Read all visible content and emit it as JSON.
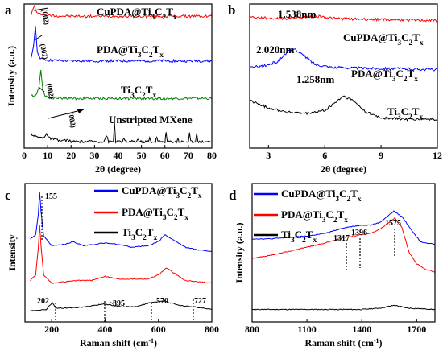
{
  "chart_data": [
    {
      "panel": "a",
      "type": "line",
      "xlabel": "2θ (degree)",
      "ylabel": "Intensity (a.u.)",
      "xlim": [
        0,
        80
      ],
      "xticks": [
        "0",
        "10",
        "20",
        "30",
        "40",
        "50",
        "60",
        "70",
        "80"
      ],
      "grid": false,
      "series": [
        {
          "name": "CuPDA@Ti3C2Tx",
          "color": "#ff0000",
          "peak_label": "(002)",
          "points": [
            [
              3,
              0.93
            ],
            [
              4,
              0.97
            ],
            [
              4.5,
              0.99
            ],
            [
              5,
              0.95
            ],
            [
              6,
              0.93
            ],
            [
              8,
              0.93
            ],
            [
              10,
              0.92
            ],
            [
              20,
              0.915
            ],
            [
              30,
              0.915
            ],
            [
              40,
              0.915
            ],
            [
              50,
              0.915
            ],
            [
              60,
              0.915
            ],
            [
              70,
              0.915
            ],
            [
              80,
              0.915
            ]
          ]
        },
        {
          "name": "PDA@Ti3C2Tx",
          "color": "#0000ff",
          "peak_label": "(002)",
          "points": [
            [
              3,
              0.62
            ],
            [
              4,
              0.7
            ],
            [
              4.8,
              0.85
            ],
            [
              5.6,
              0.68
            ],
            [
              6.5,
              0.63
            ],
            [
              8,
              0.62
            ],
            [
              10,
              0.61
            ],
            [
              20,
              0.605
            ],
            [
              30,
              0.605
            ],
            [
              40,
              0.605
            ],
            [
              50,
              0.605
            ],
            [
              60,
              0.605
            ],
            [
              70,
              0.605
            ],
            [
              80,
              0.605
            ]
          ]
        },
        {
          "name": "Ti3C2Tx",
          "color": "#008000",
          "peak_label": "(002)",
          "points": [
            [
              3,
              0.36
            ],
            [
              5,
              0.37
            ],
            [
              6.2,
              0.41
            ],
            [
              7.1,
              0.55
            ],
            [
              8,
              0.4
            ],
            [
              9,
              0.36
            ],
            [
              12,
              0.35
            ],
            [
              20,
              0.345
            ],
            [
              30,
              0.345
            ],
            [
              40,
              0.345
            ],
            [
              50,
              0.345
            ],
            [
              60,
              0.345
            ],
            [
              70,
              0.345
            ],
            [
              80,
              0.345
            ]
          ]
        },
        {
          "name": "Unstripted MXene",
          "color": "#000000",
          "peak_label": "(002)",
          "points": [
            [
              3,
              0.1
            ],
            [
              5,
              0.08
            ],
            [
              8,
              0.07
            ],
            [
              9.5,
              0.1
            ],
            [
              10.5,
              0.07
            ],
            [
              15,
              0.05
            ],
            [
              19,
              0.055
            ],
            [
              20,
              0.045
            ],
            [
              25,
              0.045
            ],
            [
              34,
              0.045
            ],
            [
              35,
              0.09
            ],
            [
              36,
              0.045
            ],
            [
              38,
              0.045
            ],
            [
              38.5,
              0.18
            ],
            [
              39,
              0.045
            ],
            [
              42,
              0.045
            ],
            [
              42.5,
              0.07
            ],
            [
              43,
              0.045
            ],
            [
              48,
              0.045
            ],
            [
              48.5,
              0.07
            ],
            [
              49,
              0.045
            ],
            [
              53,
              0.045
            ],
            [
              53.5,
              0.07
            ],
            [
              54,
              0.045
            ],
            [
              56,
              0.045
            ],
            [
              56.5,
              0.08
            ],
            [
              57,
              0.045
            ],
            [
              60,
              0.045
            ],
            [
              60.5,
              0.11
            ],
            [
              61,
              0.045
            ],
            [
              65,
              0.045
            ],
            [
              65.5,
              0.07
            ],
            [
              66,
              0.045
            ],
            [
              70,
              0.045
            ],
            [
              70.5,
              0.1
            ],
            [
              71,
              0.045
            ],
            [
              73,
              0.045
            ],
            [
              73.5,
              0.11
            ],
            [
              74,
              0.045
            ],
            [
              80,
              0.045
            ]
          ]
        }
      ]
    },
    {
      "panel": "b",
      "type": "line",
      "xlabel": "2θ (degree)",
      "xlim": [
        2,
        12
      ],
      "xticks": [
        "3",
        "6",
        "9",
        "12"
      ],
      "grid": false,
      "series": [
        {
          "name": "CuPDA@Ti3C2Tx",
          "color": "#ff0000",
          "d_spacing": "1.538nm",
          "points": [
            [
              2,
              0.91
            ],
            [
              3,
              0.9
            ],
            [
              4,
              0.9
            ],
            [
              5,
              0.91
            ],
            [
              5.7,
              0.915
            ],
            [
              6.5,
              0.9
            ],
            [
              8,
              0.895
            ],
            [
              10,
              0.89
            ],
            [
              12,
              0.885
            ]
          ]
        },
        {
          "name": "PDA@Ti3C2Tx",
          "color": "#0000ff",
          "d_spacing": "2.020nm",
          "points": [
            [
              2,
              0.56
            ],
            [
              2.8,
              0.57
            ],
            [
              3.5,
              0.6
            ],
            [
              4,
              0.67
            ],
            [
              4.4,
              0.69
            ],
            [
              4.9,
              0.64
            ],
            [
              5.5,
              0.58
            ],
            [
              6.5,
              0.56
            ],
            [
              8,
              0.555
            ],
            [
              10,
              0.55
            ],
            [
              12,
              0.545
            ]
          ]
        },
        {
          "name": "Ti3C2Tx",
          "color": "#000000",
          "d_spacing": "1.258nm",
          "points": [
            [
              2,
              0.33
            ],
            [
              3,
              0.28
            ],
            [
              4,
              0.25
            ],
            [
              5,
              0.24
            ],
            [
              6,
              0.26
            ],
            [
              6.6,
              0.32
            ],
            [
              7.0,
              0.36
            ],
            [
              7.5,
              0.33
            ],
            [
              8.2,
              0.25
            ],
            [
              9,
              0.21
            ],
            [
              10.5,
              0.2
            ],
            [
              12,
              0.2
            ]
          ]
        }
      ]
    },
    {
      "panel": "c",
      "type": "line",
      "xlabel": "Raman shift (cm⁻¹)",
      "ylabel": "Intensity",
      "xlim": [
        100,
        800
      ],
      "xticks": [
        "200",
        "400",
        "600",
        "800"
      ],
      "grid": false,
      "legend": "top-right",
      "peak_labels": [
        "155",
        "202",
        "395",
        "570",
        "727"
      ],
      "series": [
        {
          "name": "CuPDA@Ti3C2Tx",
          "color": "#0000ff",
          "points": [
            [
              120,
              0.6
            ],
            [
              140,
              0.63
            ],
            [
              150,
              0.78
            ],
            [
              155,
              0.94
            ],
            [
              160,
              0.8
            ],
            [
              170,
              0.62
            ],
            [
              200,
              0.55
            ],
            [
              250,
              0.56
            ],
            [
              280,
              0.58
            ],
            [
              320,
              0.55
            ],
            [
              400,
              0.57
            ],
            [
              450,
              0.56
            ],
            [
              500,
              0.54
            ],
            [
              560,
              0.55
            ],
            [
              600,
              0.58
            ],
            [
              625,
              0.63
            ],
            [
              650,
              0.6
            ],
            [
              700,
              0.54
            ],
            [
              750,
              0.52
            ],
            [
              800,
              0.51
            ]
          ]
        },
        {
          "name": "PDA@Ti3C2Tx",
          "color": "#ff0000",
          "points": [
            [
              120,
              0.3
            ],
            [
              140,
              0.34
            ],
            [
              150,
              0.54
            ],
            [
              155,
              0.7
            ],
            [
              160,
              0.55
            ],
            [
              170,
              0.34
            ],
            [
              200,
              0.28
            ],
            [
              250,
              0.29
            ],
            [
              300,
              0.3
            ],
            [
              350,
              0.3
            ],
            [
              400,
              0.33
            ],
            [
              450,
              0.31
            ],
            [
              500,
              0.31
            ],
            [
              560,
              0.31
            ],
            [
              600,
              0.34
            ],
            [
              630,
              0.39
            ],
            [
              660,
              0.35
            ],
            [
              700,
              0.3
            ],
            [
              750,
              0.29
            ],
            [
              800,
              0.28
            ]
          ]
        },
        {
          "name": "Ti3C2Tx",
          "color": "#000000",
          "points": [
            [
              120,
              0.08
            ],
            [
              180,
              0.09
            ],
            [
              202,
              0.14
            ],
            [
              215,
              0.1
            ],
            [
              260,
              0.1
            ],
            [
              330,
              0.11
            ],
            [
              395,
              0.13
            ],
            [
              460,
              0.11
            ],
            [
              520,
              0.11
            ],
            [
              570,
              0.14
            ],
            [
              620,
              0.15
            ],
            [
              680,
              0.12
            ],
            [
              727,
              0.11
            ],
            [
              800,
              0.09
            ]
          ]
        }
      ]
    },
    {
      "panel": "d",
      "type": "line",
      "xlabel": "Raman shift (cm⁻¹)",
      "ylabel": "Intensity (a.u.)",
      "xlim": [
        800,
        1800
      ],
      "xticks": [
        "800",
        "1100",
        "1400",
        "1700"
      ],
      "grid": false,
      "legend": "top-left",
      "peak_labels": [
        "1317",
        "1396",
        "1575"
      ],
      "series": [
        {
          "name": "CuPDA@Ti3C2Tx",
          "color": "#0000ff",
          "points": [
            [
              800,
              0.6
            ],
            [
              900,
              0.6
            ],
            [
              1000,
              0.61
            ],
            [
              1100,
              0.62
            ],
            [
              1200,
              0.64
            ],
            [
              1300,
              0.68
            ],
            [
              1350,
              0.69
            ],
            [
              1400,
              0.7
            ],
            [
              1450,
              0.7
            ],
            [
              1500,
              0.72
            ],
            [
              1575,
              0.8
            ],
            [
              1620,
              0.76
            ],
            [
              1680,
              0.65
            ],
            [
              1720,
              0.58
            ],
            [
              1800,
              0.56
            ]
          ]
        },
        {
          "name": "PDA@Ti3C2Tx",
          "color": "#ff0000",
          "points": [
            [
              800,
              0.46
            ],
            [
              900,
              0.48
            ],
            [
              1000,
              0.51
            ],
            [
              1100,
              0.54
            ],
            [
              1200,
              0.57
            ],
            [
              1300,
              0.61
            ],
            [
              1350,
              0.62
            ],
            [
              1400,
              0.63
            ],
            [
              1450,
              0.64
            ],
            [
              1500,
              0.67
            ],
            [
              1560,
              0.73
            ],
            [
              1580,
              0.75
            ],
            [
              1620,
              0.68
            ],
            [
              1660,
              0.5
            ],
            [
              1700,
              0.42
            ],
            [
              1750,
              0.38
            ],
            [
              1800,
              0.36
            ]
          ]
        },
        {
          "name": "Ti3C2Tx",
          "color": "#000000",
          "points": [
            [
              800,
              0.09
            ],
            [
              1000,
              0.09
            ],
            [
              1200,
              0.09
            ],
            [
              1400,
              0.09
            ],
            [
              1500,
              0.1
            ],
            [
              1580,
              0.12
            ],
            [
              1650,
              0.1
            ],
            [
              1800,
              0.09
            ]
          ]
        }
      ]
    }
  ]
}
